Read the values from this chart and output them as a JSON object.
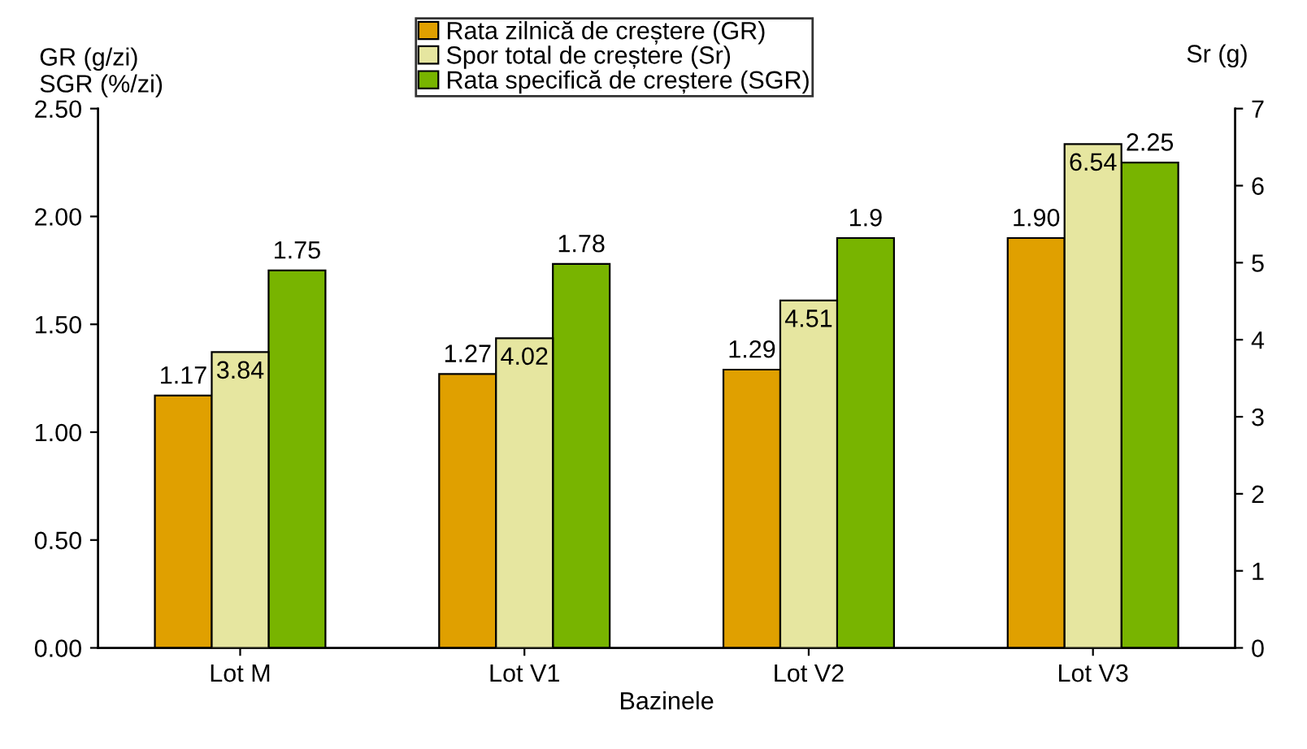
{
  "chart_data": {
    "type": "bar",
    "xlabel": "Bazinele",
    "ylabel": "GR (g/zi)\nSGR (%/zi)",
    "y2label": "Sr (g)",
    "categories": [
      "Lot M",
      "Lot V1",
      "Lot V2",
      "Lot V3"
    ],
    "series": [
      {
        "name": "Rata zilnică de creștere (GR)",
        "color": "#e0a000",
        "values": [
          1.17,
          1.27,
          1.29,
          1.9
        ],
        "value_labels": [
          "1.17",
          "1.27",
          "1.29",
          "1.90"
        ]
      },
      {
        "name": "Spor total de creștere (Sr)",
        "color": "#e6e6a0",
        "axis": "y2",
        "values": [
          3.84,
          4.02,
          4.51,
          6.54
        ],
        "value_labels": [
          "3.84",
          "4.02",
          "4.51",
          "6.54"
        ]
      },
      {
        "name": "Rata specifică de creștere (SGR)",
        "color": "#78b400",
        "values": [
          1.75,
          1.78,
          1.9,
          2.25
        ],
        "value_labels": [
          "1.75",
          "1.78",
          "1.9",
          "2.25"
        ]
      }
    ],
    "ylim": [
      0,
      2.5
    ],
    "yticks": [
      {
        "value": 0,
        "label": "0.00"
      },
      {
        "value": 0.5,
        "label": "0.50"
      },
      {
        "value": 1,
        "label": "1.00"
      },
      {
        "value": 1.5,
        "label": "1.50"
      },
      {
        "value": 2,
        "label": "2.00"
      },
      {
        "value": 2.5,
        "label": "2.50"
      }
    ],
    "y2lim": [
      0,
      7
    ],
    "y2ticks": [
      0,
      1,
      2,
      3,
      4,
      5,
      6,
      7
    ],
    "grid": false,
    "legend": "top"
  }
}
